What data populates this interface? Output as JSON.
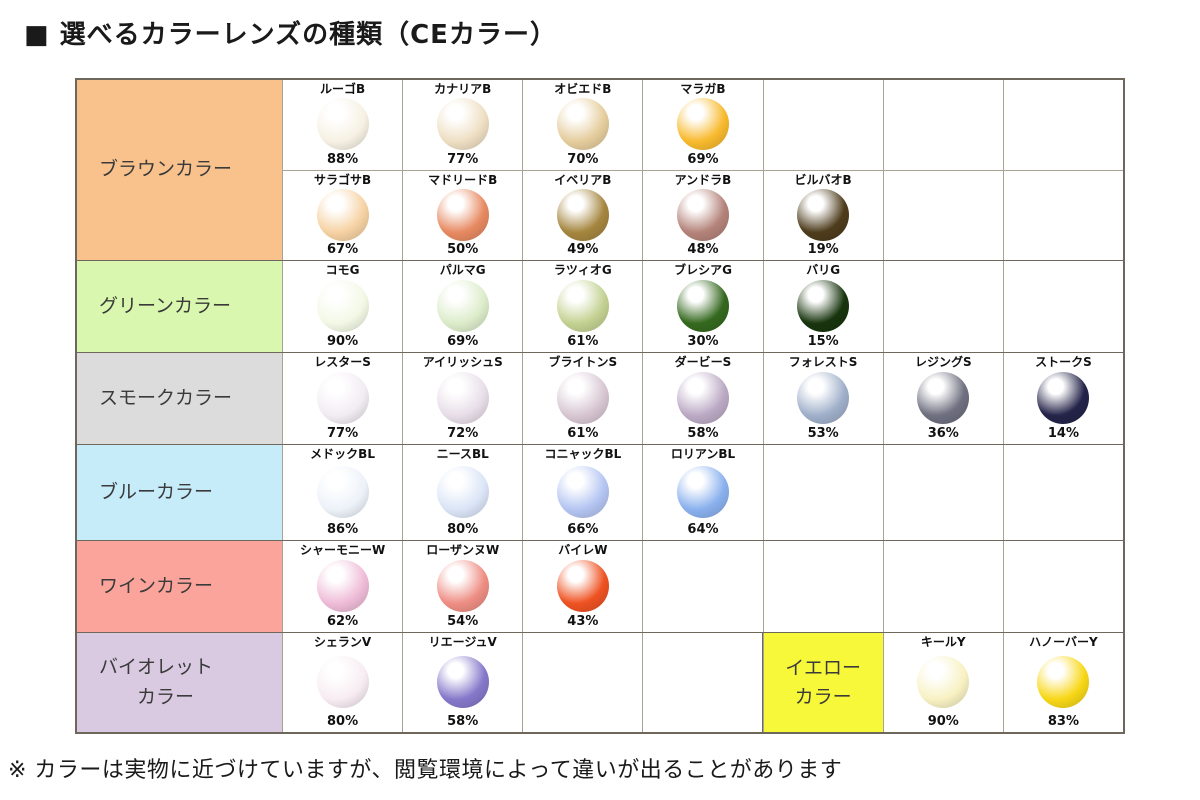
{
  "title": "■ 選べるカラーレンズの種類（CEカラー）",
  "footnote": "※ カラーは実物に近づけていますが、閲覧環境によって違いが出ることがあります",
  "table": {
    "rows": [
      {
        "category": "ブラウンカラー",
        "category_bg": "#f9c28c",
        "subrows": [
          [
            {
              "name": "ルーゴB",
              "pct": "88%",
              "color": "#f6f1e3"
            },
            {
              "name": "カナリアB",
              "pct": "77%",
              "color": "#eedfc3"
            },
            {
              "name": "オビエドB",
              "pct": "70%",
              "color": "#e5cd9d"
            },
            {
              "name": "マラガB",
              "pct": "69%",
              "color": "#f8ba2e"
            },
            null,
            null,
            null
          ],
          [
            {
              "name": "サラゴサB",
              "pct": "67%",
              "color": "#f6d2a3"
            },
            {
              "name": "マドリードB",
              "pct": "50%",
              "color": "#e78a62"
            },
            {
              "name": "イベリアB",
              "pct": "49%",
              "color": "#a5863f"
            },
            {
              "name": "アンドラB",
              "pct": "48%",
              "color": "#b4837a"
            },
            {
              "name": "ビルバオB",
              "pct": "19%",
              "color": "#4e3c1c"
            },
            null,
            null
          ]
        ]
      },
      {
        "category": "グリーンカラー",
        "category_bg": "#d9f7ae",
        "subrows": [
          [
            {
              "name": "コモG",
              "pct": "90%",
              "color": "#f3f8e5"
            },
            {
              "name": "パルマG",
              "pct": "69%",
              "color": "#dcecca"
            },
            {
              "name": "ラツィオG",
              "pct": "61%",
              "color": "#c3d292"
            },
            {
              "name": "ブレシアG",
              "pct": "30%",
              "color": "#35691f"
            },
            {
              "name": "バリG",
              "pct": "15%",
              "color": "#18350e"
            },
            null,
            null
          ]
        ]
      },
      {
        "category": "スモークカラー",
        "category_bg": "#dcdcdc",
        "subrows": [
          [
            {
              "name": "レスターS",
              "pct": "77%",
              "color": "#f2ecf3"
            },
            {
              "name": "アイリッシュS",
              "pct": "72%",
              "color": "#e8dee9"
            },
            {
              "name": "ブライトンS",
              "pct": "61%",
              "color": "#d8c7d3"
            },
            {
              "name": "ダービーS",
              "pct": "58%",
              "color": "#bcaac5"
            },
            {
              "name": "フォレストS",
              "pct": "53%",
              "color": "#a0b0ca"
            },
            {
              "name": "レジングS",
              "pct": "36%",
              "color": "#6f7080"
            },
            {
              "name": "ストークS",
              "pct": "14%",
              "color": "#24244a"
            }
          ]
        ]
      },
      {
        "category": "ブルーカラー",
        "category_bg": "#c6ecfa",
        "subrows": [
          [
            {
              "name": "メドックBL",
              "pct": "86%",
              "color": "#edf2f9"
            },
            {
              "name": "ニースBL",
              "pct": "80%",
              "color": "#dbe5f7"
            },
            {
              "name": "コニャックBL",
              "pct": "66%",
              "color": "#b4c5f2"
            },
            {
              "name": "ロリアンBL",
              "pct": "64%",
              "color": "#8ab1ee"
            },
            null,
            null,
            null
          ]
        ]
      },
      {
        "category": "ワインカラー",
        "category_bg": "#fba49c",
        "subrows": [
          [
            {
              "name": "シャーモニーW",
              "pct": "62%",
              "color": "#efbcd7"
            },
            {
              "name": "ローザンヌW",
              "pct": "54%",
              "color": "#ee8e84"
            },
            {
              "name": "バイレW",
              "pct": "43%",
              "color": "#ee5222"
            },
            null,
            null,
            null,
            null
          ]
        ]
      },
      {
        "category": "バイオレット\n　　カラー",
        "category_bg": "#d9cae2",
        "subrows": [
          [
            {
              "name": "シェランV",
              "pct": "80%",
              "color": "#f7ecf2"
            },
            {
              "name": "リエージュV",
              "pct": "58%",
              "color": "#8678ca"
            },
            null,
            null,
            {
              "label": "イエロー\nカラー",
              "bg": "#f8f83a"
            },
            {
              "name": "キールY",
              "pct": "90%",
              "color": "#f8f1c3"
            },
            {
              "name": "ハノーバーY",
              "pct": "83%",
              "color": "#f8d717"
            }
          ]
        ]
      }
    ]
  }
}
